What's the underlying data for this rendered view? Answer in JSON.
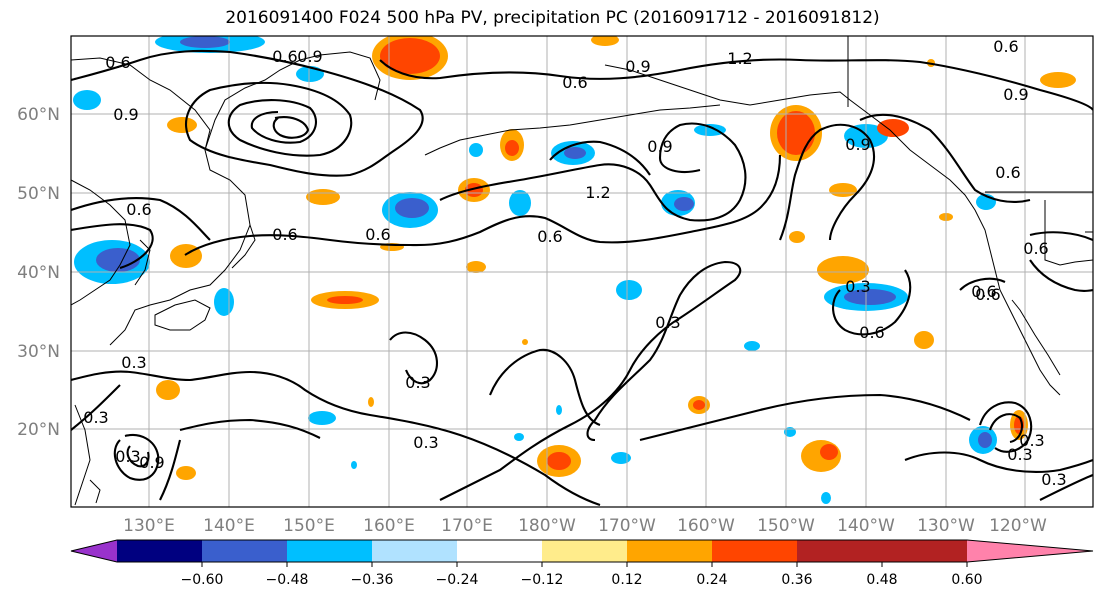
{
  "title": "2016091400 F024 500 hPa PV, precipitation PC (2016091712 - 2016091812)",
  "latitude_labels": [
    "60°N",
    "50°N",
    "40°N",
    "30°N",
    "20°N"
  ],
  "longitude_labels": [
    "130°E",
    "140°E",
    "150°E",
    "160°E",
    "170°E",
    "180°W",
    "170°W",
    "160°W",
    "150°W",
    "140°W",
    "130°W",
    "120°W"
  ],
  "contour_labels": [
    "0.6",
    "0.9",
    "1.2",
    "0.9",
    "0.6",
    "0.6",
    "0.9",
    "0.9",
    "1.2",
    "0.6",
    "0.6",
    "0.6",
    "0.9",
    "0.6",
    "0.6",
    "0.6",
    "0.6",
    "0.3",
    "0.3",
    "0.3",
    "0.3",
    "0.6",
    "0.6",
    "0.3",
    "0.3",
    "0.3",
    "0.3",
    "0.3",
    "0.9",
    "0.3",
    "0.6",
    "0.9"
  ],
  "colorbar": {
    "ticks": [
      "−0.60",
      "−0.48",
      "−0.36",
      "−0.24",
      "−0.12",
      "0.12",
      "0.24",
      "0.36",
      "0.48",
      "0.60"
    ],
    "colors": [
      "#9932cc",
      "#000080",
      "#3a5fcd",
      "#00bfff",
      "#b0e2ff",
      "#ffffff",
      "#ffec8b",
      "#ffa500",
      "#ff4500",
      "#b22222",
      "#ff82ab"
    ]
  }
}
